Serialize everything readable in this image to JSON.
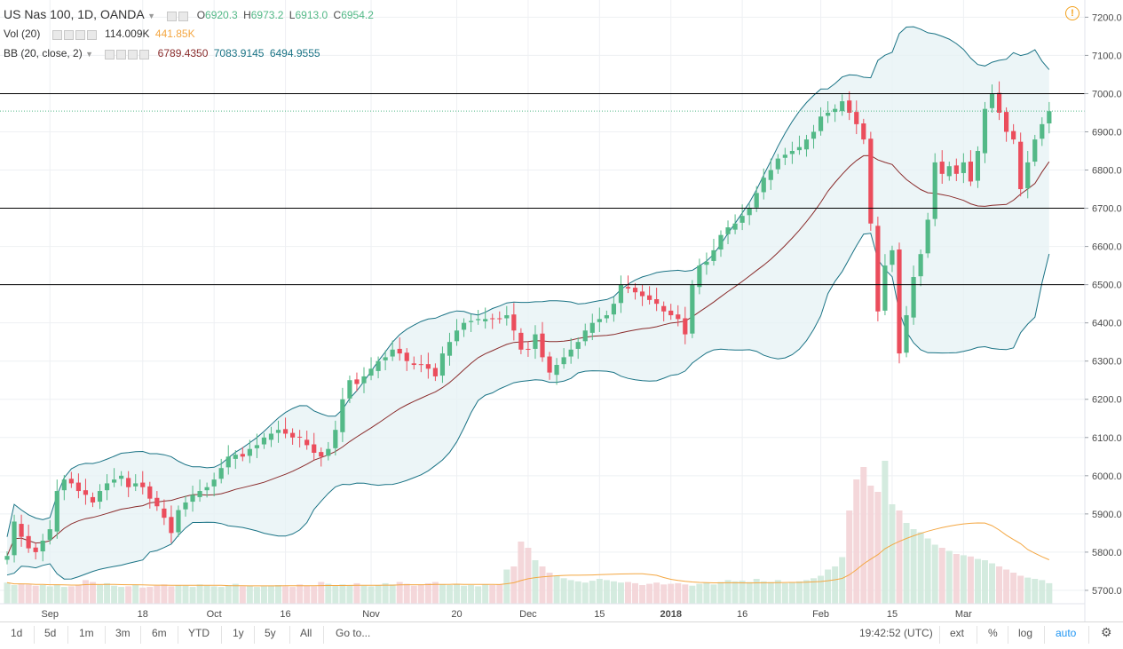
{
  "legend": {
    "symbol": "US Nas 100, 1D, OANDA",
    "ohlc": [
      {
        "k": "O",
        "v": "6920.3"
      },
      {
        "k": "H",
        "v": "6973.2"
      },
      {
        "k": "L",
        "v": "6913.0"
      },
      {
        "k": "C",
        "v": "6954.2"
      }
    ],
    "vol_title": "Vol (20)",
    "vol_value": "114.009K",
    "vol_ma": "441.85K",
    "bb_title": "BB (20, close, 2)",
    "bb_basis": "6789.4350",
    "bb_upper": "7083.9145",
    "bb_lower": "6494.9555"
  },
  "colors": {
    "up": "#53b987",
    "down": "#eb4d5c",
    "band": "#1a7385",
    "basis": "#8a2c2c",
    "vol_ma": "#f4a742",
    "last_price": "#53b987",
    "alert": "#f3a11d"
  },
  "footer": {
    "ranges": [
      "1d",
      "5d",
      "1m",
      "3m",
      "6m",
      "YTD",
      "1y",
      "5y",
      "All"
    ],
    "goto": "Go to...",
    "time": "19:42:52 (UTC)",
    "opts": [
      "ext",
      "%",
      "log",
      "auto"
    ]
  },
  "chart_data": {
    "type": "candlestick",
    "price_axis": [
      "7200.0",
      "7100.0",
      "7000.0",
      "6900.0",
      "6800.0",
      "6700.0",
      "6600.0",
      "6500.0",
      "6400.0",
      "6300.0",
      "6200.0",
      "6100.0",
      "6000.0",
      "5900.0",
      "5800.0",
      "5700.0"
    ],
    "ylim": [
      5665,
      7245
    ],
    "x_labels": [
      {
        "i": 6,
        "label": "Sep"
      },
      {
        "i": 19,
        "label": "18"
      },
      {
        "i": 29,
        "label": "Oct"
      },
      {
        "i": 39,
        "label": "16"
      },
      {
        "i": 51,
        "label": "Nov"
      },
      {
        "i": 63,
        "label": "20"
      },
      {
        "i": 73,
        "label": "Dec"
      },
      {
        "i": 83,
        "label": "15"
      },
      {
        "i": 93,
        "label": "2018"
      },
      {
        "i": 103,
        "label": "16"
      },
      {
        "i": 114,
        "label": "Feb"
      },
      {
        "i": 124,
        "label": "15"
      },
      {
        "i": 134,
        "label": "Mar"
      }
    ],
    "horizontal_lines": [
      7000,
      6700,
      6500
    ],
    "last_price": "6954.2",
    "closes": [
      5790,
      5880,
      5840,
      5810,
      5800,
      5830,
      5860,
      5960,
      5990,
      5980,
      5960,
      5950,
      5930,
      5960,
      5980,
      5990,
      6000,
      5970,
      5980,
      5970,
      5940,
      5920,
      5890,
      5850,
      5910,
      5930,
      5950,
      5960,
      5970,
      5990,
      6020,
      6050,
      6055,
      6050,
      6070,
      6080,
      6100,
      6110,
      6120,
      6110,
      6100,
      6100,
      6080,
      6060,
      6050,
      6070,
      6120,
      6200,
      6250,
      6240,
      6260,
      6280,
      6300,
      6310,
      6330,
      6320,
      6300,
      6290,
      6290,
      6280,
      6260,
      6320,
      6350,
      6380,
      6400,
      6405,
      6410,
      6410,
      6410,
      6410,
      6420,
      6380,
      6330,
      6330,
      6370,
      6310,
      6270,
      6290,
      6310,
      6330,
      6350,
      6380,
      6400,
      6410,
      6420,
      6450,
      6500,
      6490,
      6480,
      6470,
      6460,
      6450,
      6430,
      6420,
      6410,
      6370,
      6500,
      6550,
      6560,
      6590,
      6630,
      6650,
      6660,
      6680,
      6700,
      6740,
      6780,
      6800,
      6830,
      6840,
      6850,
      6860,
      6880,
      6900,
      6940,
      6950,
      6960,
      6980,
      6950,
      6920,
      6880,
      6660,
      6430,
      6550,
      6590,
      6320,
      6420,
      6520,
      6580,
      6670,
      6820,
      6790,
      6810,
      6790,
      6820,
      6770,
      6850,
      6960,
      7000,
      6950,
      6900,
      6880,
      6750,
      6820,
      6880,
      6920,
      6954
    ],
    "volume_labels": [
      "Vol (20)"
    ],
    "volumes": [
      0.34,
      0.3,
      0.32,
      0.31,
      0.29,
      0.3,
      0.28,
      0.31,
      0.27,
      0.28,
      0.3,
      0.38,
      0.35,
      0.3,
      0.33,
      0.29,
      0.27,
      0.28,
      0.3,
      0.26,
      0.27,
      0.29,
      0.31,
      0.28,
      0.3,
      0.29,
      0.27,
      0.31,
      0.29,
      0.28,
      0.27,
      0.3,
      0.32,
      0.28,
      0.29,
      0.27,
      0.28,
      0.29,
      0.3,
      0.28,
      0.27,
      0.31,
      0.29,
      0.28,
      0.35,
      0.32,
      0.29,
      0.31,
      0.3,
      0.33,
      0.29,
      0.28,
      0.3,
      0.33,
      0.31,
      0.35,
      0.32,
      0.29,
      0.3,
      0.33,
      0.35,
      0.31,
      0.3,
      0.32,
      0.29,
      0.3,
      0.28,
      0.31,
      0.3,
      0.31,
      0.55,
      0.6,
      1.0,
      0.9,
      0.7,
      0.6,
      0.5,
      0.45,
      0.41,
      0.38,
      0.36,
      0.34,
      0.37,
      0.4,
      0.38,
      0.36,
      0.34,
      0.35,
      0.33,
      0.3,
      0.32,
      0.34,
      0.31,
      0.32,
      0.33,
      0.31,
      0.29,
      0.32,
      0.34,
      0.31,
      0.35,
      0.38,
      0.36,
      0.37,
      0.35,
      0.4,
      0.36,
      0.35,
      0.38,
      0.33,
      0.35,
      0.36,
      0.38,
      0.41,
      0.45,
      0.55,
      0.6,
      0.75,
      1.5,
      2.0,
      2.2,
      1.9,
      1.8,
      2.3,
      1.6,
      1.5,
      1.3,
      1.2,
      1.15,
      1.05,
      0.95,
      0.9,
      0.85,
      0.8,
      0.78,
      0.76,
      0.72,
      0.7,
      0.65,
      0.6,
      0.55,
      0.5,
      0.45,
      0.42,
      0.4,
      0.38,
      0.33
    ]
  }
}
